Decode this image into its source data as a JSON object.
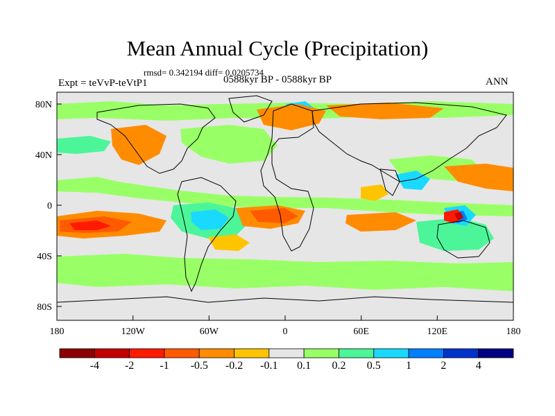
{
  "title": "Mean Annual Cycle (Precipitation)",
  "stats_text": "rmsd= 0.342194 diff= 0.0205734",
  "left_label": "Expt = teVvP-teVtP1",
  "center_label": "0588kyr BP - 0588kyr BP",
  "right_label": "ANN",
  "lat_ticks": [
    "80N",
    "40N",
    "0",
    "40S",
    "80S"
  ],
  "lon_ticks": [
    "180",
    "120W",
    "60W",
    "0",
    "60E",
    "120E",
    "180"
  ],
  "colorbar": {
    "labels": [
      "-4",
      "-2",
      "-1",
      "-0.5",
      "-0.2",
      "-0.1",
      "0.1",
      "0.2",
      "0.5",
      "1",
      "2",
      "4"
    ],
    "colors": [
      "#8B0000",
      "#C40000",
      "#FF1A00",
      "#FF5A00",
      "#FF8C00",
      "#FFC400",
      "#E6E6E6",
      "#99FF66",
      "#4DF599",
      "#1AD9FF",
      "#007FFF",
      "#0033CC",
      "#000080"
    ]
  },
  "map_colors": {
    "background": "#E6E6E6",
    "coastline": "#000000"
  }
}
